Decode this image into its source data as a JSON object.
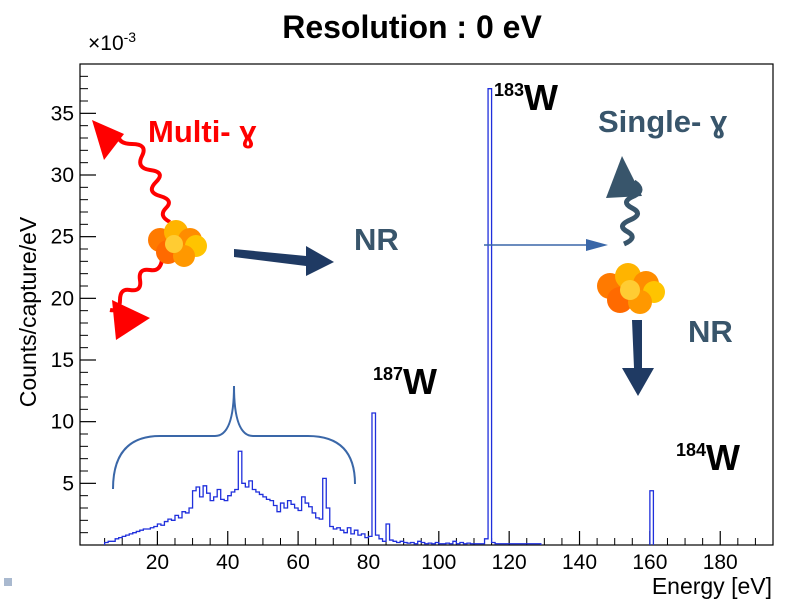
{
  "chart_data": {
    "type": "histogram",
    "title": "Resolution : 0 eV",
    "xlabel": "Energy [eV]",
    "ylabel": "Counts/capture/eV",
    "y_multiplier": "×10",
    "y_multiplier_exp": "-3",
    "xlim": [
      -2,
      195
    ],
    "ylim": [
      0,
      39
    ],
    "xticks": [
      20,
      40,
      60,
      80,
      100,
      120,
      140,
      160,
      180
    ],
    "yticks": [
      5,
      10,
      15,
      20,
      25,
      30,
      35
    ],
    "line_color": "#1f2fdc",
    "bin_width": 1,
    "bins_x": [
      5,
      6,
      7,
      8,
      9,
      10,
      11,
      12,
      13,
      14,
      15,
      16,
      17,
      18,
      19,
      20,
      21,
      22,
      23,
      24,
      25,
      26,
      27,
      28,
      29,
      30,
      31,
      32,
      33,
      34,
      35,
      36,
      37,
      38,
      39,
      40,
      41,
      42,
      43,
      44,
      45,
      46,
      47,
      48,
      49,
      50,
      51,
      52,
      53,
      54,
      55,
      56,
      57,
      58,
      59,
      60,
      61,
      62,
      63,
      64,
      65,
      66,
      67,
      68,
      69,
      70,
      71,
      72,
      73,
      74,
      75,
      76,
      77,
      78,
      79,
      80,
      81,
      82,
      83,
      84,
      85,
      86,
      87,
      88,
      89,
      90,
      91,
      92,
      93,
      94,
      95,
      96,
      97,
      98,
      99,
      100,
      101,
      102,
      103,
      104,
      105,
      106,
      107,
      108,
      109,
      110,
      111,
      112,
      113,
      114,
      115,
      116,
      117,
      118,
      119,
      120,
      121,
      122,
      123,
      124,
      125,
      126,
      127,
      128
    ],
    "bins_y": [
      0.2,
      0.3,
      0.3,
      0.5,
      0.6,
      0.7,
      0.8,
      0.9,
      1.0,
      1.1,
      1.2,
      1.3,
      1.3,
      1.4,
      1.5,
      1.7,
      1.6,
      1.9,
      2.1,
      2.0,
      2.4,
      2.2,
      2.7,
      2.6,
      3.0,
      4.4,
      4.7,
      3.9,
      4.8,
      4.2,
      3.6,
      3.9,
      4.5,
      3.7,
      3.6,
      4.0,
      4.3,
      4.5,
      7.6,
      5.0,
      4.7,
      5.2,
      4.5,
      4.3,
      4.1,
      3.9,
      3.7,
      3.6,
      3.2,
      2.7,
      3.4,
      3.0,
      3.6,
      3.3,
      3.0,
      2.8,
      3.9,
      3.4,
      3.1,
      2.6,
      2.2,
      2.1,
      5.4,
      3.0,
      1.5,
      1.3,
      1.4,
      1.2,
      1.0,
      1.4,
      0.9,
      1.2,
      0.8,
      0.9,
      0.6,
      0.7,
      10.7,
      0.8,
      0.5,
      0.3,
      1.7,
      0.4,
      0.3,
      0.2,
      0.3,
      0.2,
      0.15,
      0.2,
      0.1,
      0.3,
      0.2,
      0.1,
      0.15,
      0.1,
      0.2,
      0.1,
      0.1,
      0.15,
      0.1,
      0.3,
      0.1,
      0.2,
      0.1,
      0.15,
      0.1,
      0.1,
      0.1,
      0.1,
      0.5,
      37.0,
      0.2,
      0.1,
      0.1,
      0.1,
      0.1,
      0.1,
      0.1,
      0.1,
      0.1,
      0.1,
      0.1,
      0.1,
      0.1,
      0.1
    ],
    "spike_184W": {
      "x": 160,
      "y": 4.4
    },
    "annotations": {
      "multi_label": "Multi- ɣ",
      "single_label": "Single- ɣ",
      "nr_left": "NR",
      "nr_right": "NR",
      "w183_mass": "183",
      "w187_mass": "187",
      "w184_mass": "184",
      "w_symbol": "W",
      "red_color": "#ff0000",
      "slate_color": "#38556b",
      "navy_color": "#1f3a63",
      "brace_color": "#3a67a8"
    }
  }
}
